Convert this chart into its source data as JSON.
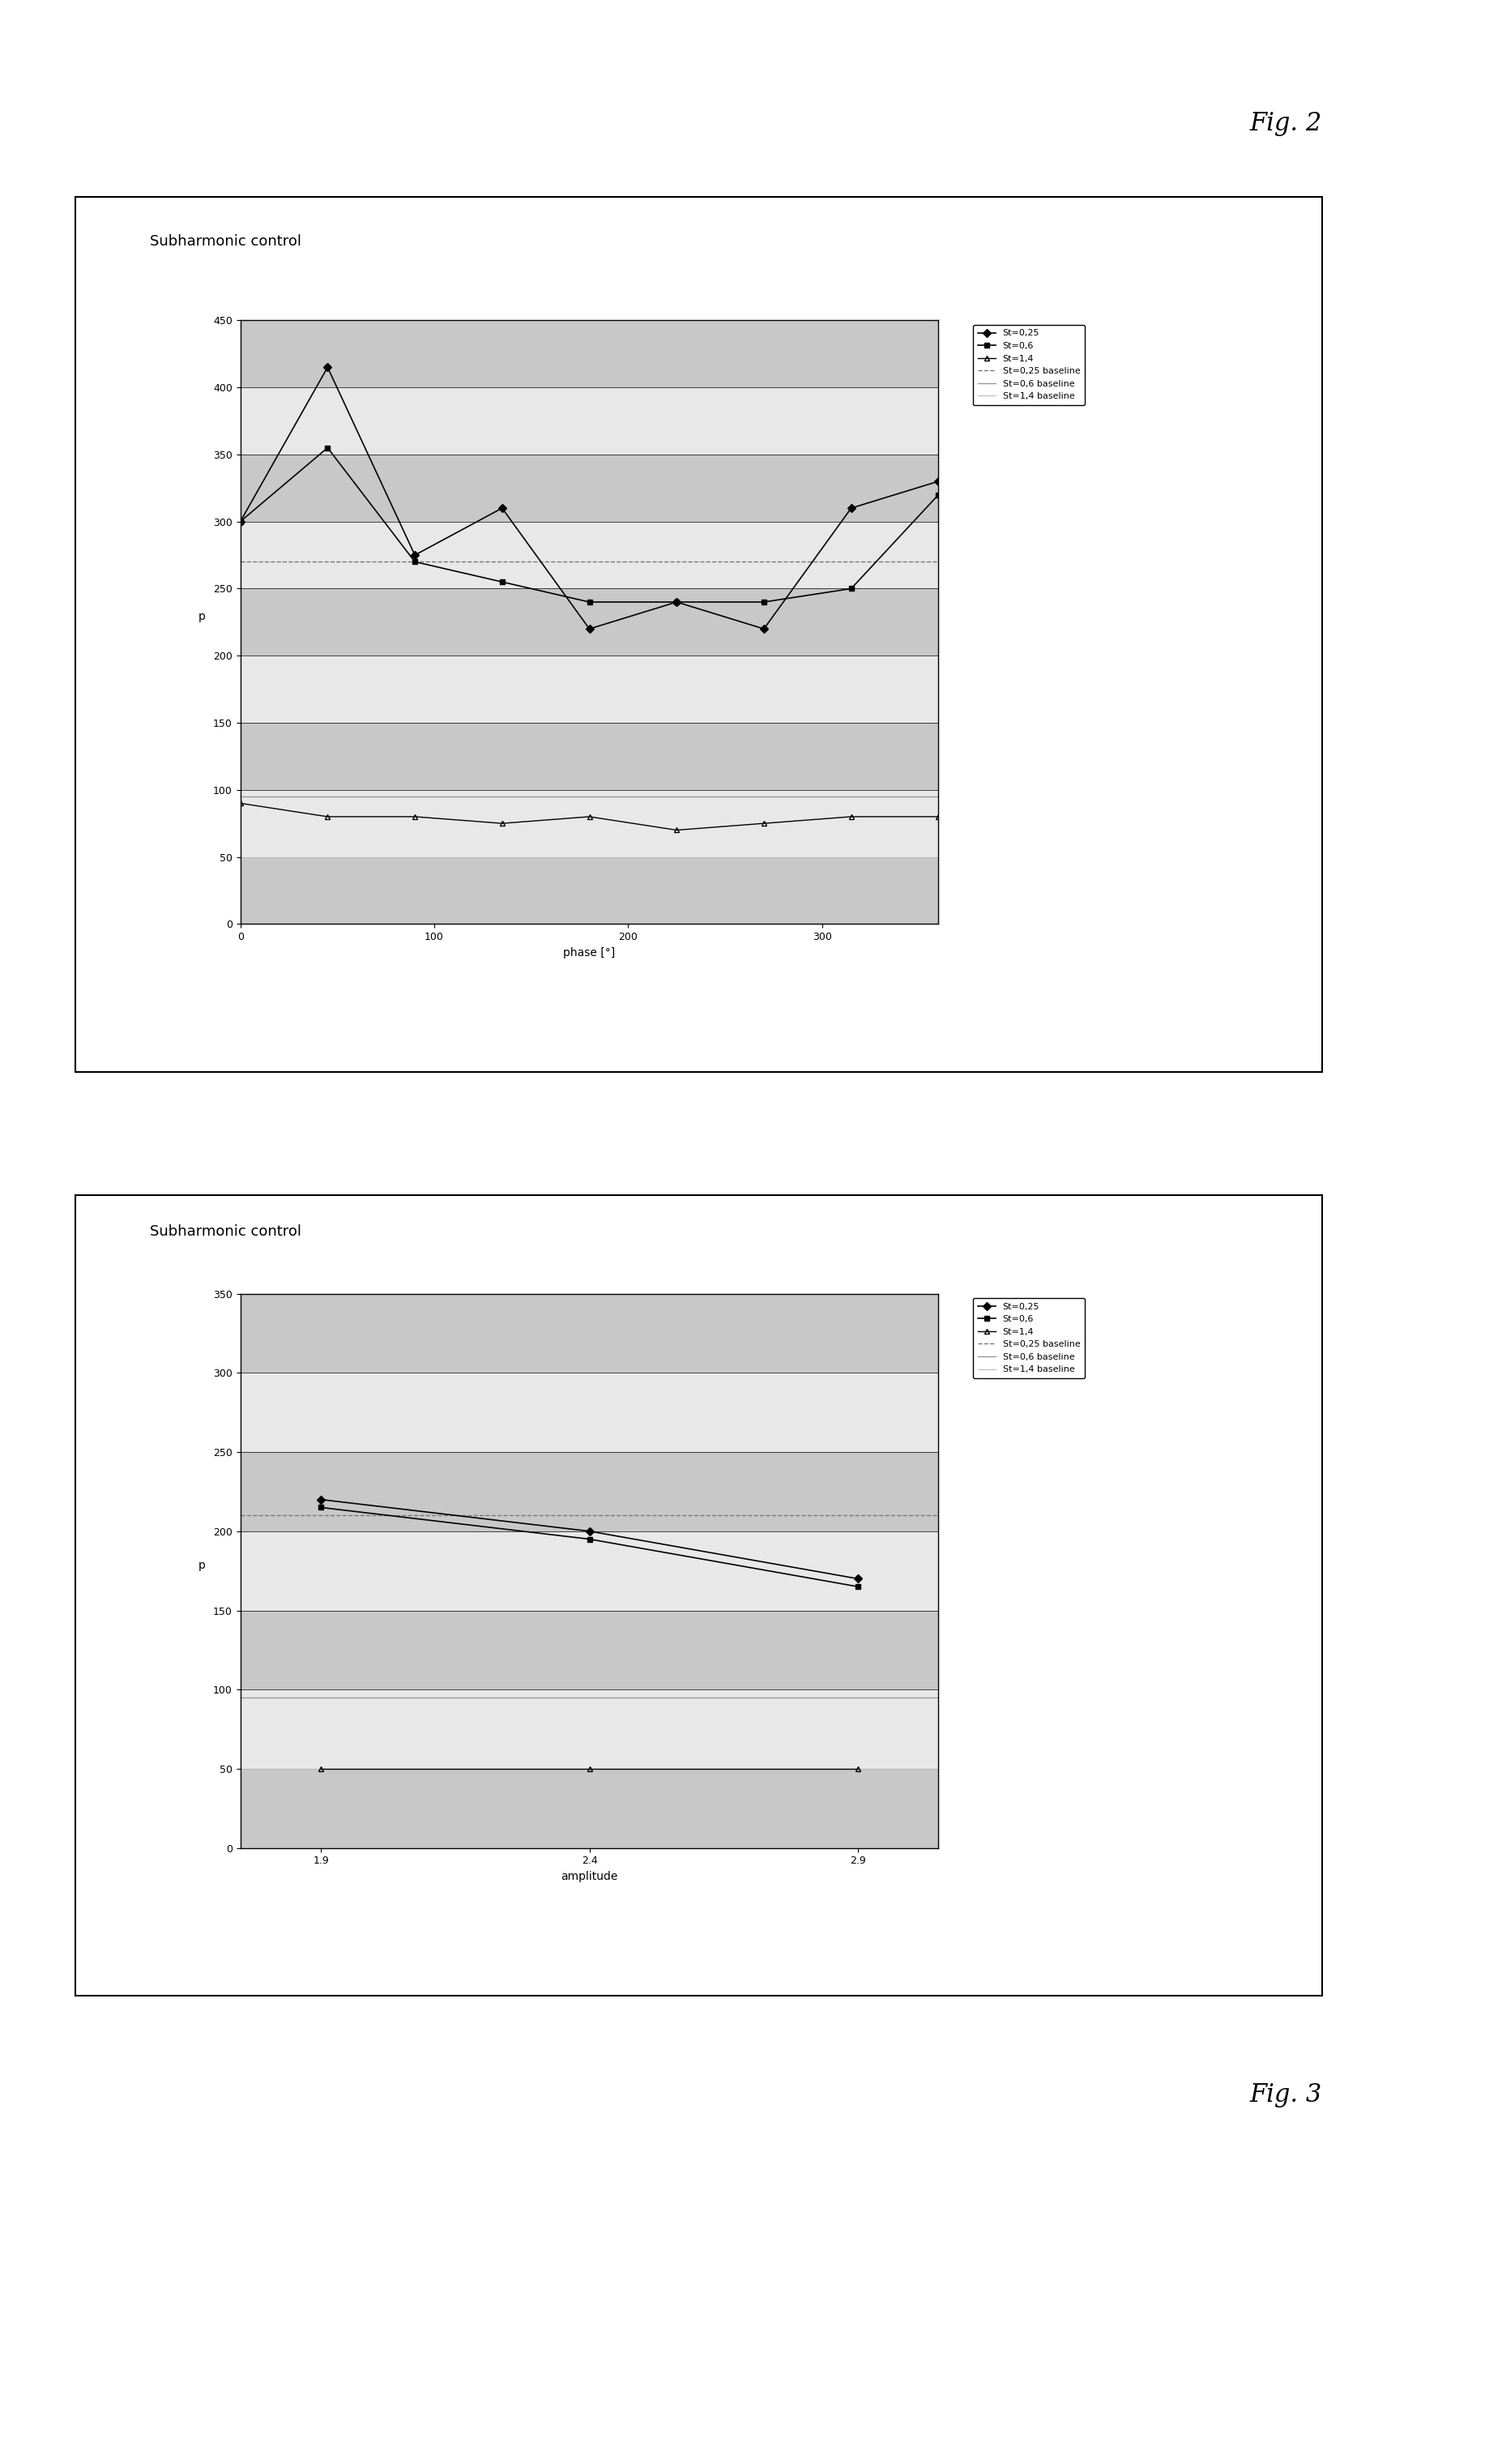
{
  "fig2": {
    "title": "Subharmonic control",
    "xlabel": "phase [°]",
    "ylabel": "p",
    "xlim": [
      0,
      360
    ],
    "ylim": [
      0,
      450
    ],
    "yticks": [
      0,
      50,
      100,
      150,
      200,
      250,
      300,
      350,
      400,
      450
    ],
    "xticks": [
      0,
      100,
      200,
      300
    ],
    "series": [
      {
        "label": "St=0,25",
        "x": [
          0,
          45,
          90,
          135,
          180,
          225,
          270,
          315,
          360
        ],
        "y": [
          300,
          415,
          275,
          310,
          220,
          240,
          220,
          310,
          330
        ],
        "color": "#000000",
        "marker": "D",
        "markersize": 5,
        "linestyle": "-",
        "linewidth": 1.2,
        "fillstyle": "full"
      },
      {
        "label": "St=0,6",
        "x": [
          0,
          45,
          90,
          135,
          180,
          225,
          270,
          315,
          360
        ],
        "y": [
          300,
          355,
          270,
          255,
          240,
          240,
          240,
          250,
          320
        ],
        "color": "#000000",
        "marker": "s",
        "markersize": 5,
        "linestyle": "-",
        "linewidth": 1.2,
        "fillstyle": "full"
      },
      {
        "label": "St=1,4",
        "x": [
          0,
          45,
          90,
          135,
          180,
          225,
          270,
          315,
          360
        ],
        "y": [
          90,
          80,
          80,
          75,
          80,
          70,
          75,
          80,
          80
        ],
        "color": "#000000",
        "marker": "^",
        "markersize": 5,
        "linestyle": "-",
        "linewidth": 1.0,
        "fillstyle": "none"
      },
      {
        "label": "St=0,25 baseline",
        "x": [
          0,
          360
        ],
        "y": [
          270,
          270
        ],
        "color": "#777777",
        "marker": "none",
        "linestyle": "--",
        "linewidth": 1.0,
        "fillstyle": "full"
      },
      {
        "label": "St=0,6 baseline",
        "x": [
          0,
          360
        ],
        "y": [
          95,
          95
        ],
        "color": "#999999",
        "marker": "none",
        "linestyle": "-",
        "linewidth": 1.0,
        "fillstyle": "full"
      },
      {
        "label": "St=1,4 baseline",
        "x": [
          0,
          360
        ],
        "y": [
          50,
          50
        ],
        "color": "#bbbbbb",
        "marker": "none",
        "linestyle": "-",
        "linewidth": 0.8,
        "fillstyle": "full"
      }
    ]
  },
  "fig3": {
    "title": "Subharmonic control",
    "xlabel": "amplitude",
    "ylabel": "p",
    "xlim": [
      1.75,
      3.05
    ],
    "ylim": [
      0,
      350
    ],
    "yticks": [
      0,
      50,
      100,
      150,
      200,
      250,
      300,
      350
    ],
    "xticks": [
      1.9,
      2.4,
      2.9
    ],
    "series": [
      {
        "label": "St=0,25",
        "x": [
          1.9,
          2.4,
          2.9
        ],
        "y": [
          220,
          200,
          170
        ],
        "color": "#000000",
        "marker": "D",
        "markersize": 5,
        "linestyle": "-",
        "linewidth": 1.2,
        "fillstyle": "full"
      },
      {
        "label": "St=0,6",
        "x": [
          1.9,
          2.4,
          2.9
        ],
        "y": [
          215,
          195,
          165
        ],
        "color": "#000000",
        "marker": "s",
        "markersize": 5,
        "linestyle": "-",
        "linewidth": 1.2,
        "fillstyle": "full"
      },
      {
        "label": "St=1,4",
        "x": [
          1.9,
          2.4,
          2.9
        ],
        "y": [
          50,
          50,
          50
        ],
        "color": "#000000",
        "marker": "^",
        "markersize": 5,
        "linestyle": "-",
        "linewidth": 1.0,
        "fillstyle": "none"
      },
      {
        "label": "St=0,25 baseline",
        "x": [
          1.75,
          3.05
        ],
        "y": [
          210,
          210
        ],
        "color": "#777777",
        "marker": "none",
        "linestyle": "--",
        "linewidth": 1.0,
        "fillstyle": "full"
      },
      {
        "label": "St=0,6 baseline",
        "x": [
          1.75,
          3.05
        ],
        "y": [
          95,
          95
        ],
        "color": "#999999",
        "marker": "none",
        "linestyle": "-",
        "linewidth": 1.0,
        "fillstyle": "full"
      },
      {
        "label": "St=1,4 baseline",
        "x": [
          1.75,
          3.05
        ],
        "y": [
          50,
          50
        ],
        "color": "#bbbbbb",
        "marker": "none",
        "linestyle": "-",
        "linewidth": 0.8,
        "fillstyle": "full"
      }
    ]
  },
  "fig_label_1": "Fig. 2",
  "fig_label_2": "Fig. 3",
  "background_color": "#ffffff",
  "band_color_dark": "#c8c8c8",
  "band_color_light": "#e8e8e8"
}
